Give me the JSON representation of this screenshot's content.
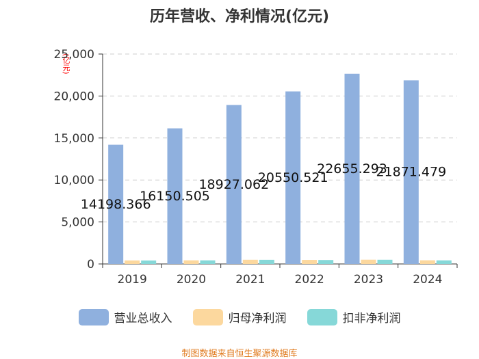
{
  "chart_data": {
    "type": "bar",
    "title": "历年营收、净利情况(亿元)",
    "ylabel": "(亿元)",
    "xlabel": "",
    "categories": [
      "2019",
      "2020",
      "2021",
      "2022",
      "2023",
      "2024"
    ],
    "series": [
      {
        "name": "营业总收入",
        "color": "#8fb0de",
        "values": [
          14198.366,
          16150.505,
          18927.062,
          20550.521,
          22655.293,
          21871.479
        ],
        "labels": [
          "14198.366",
          "16150.505",
          "18927.062",
          "20550.521",
          "22655.293",
          "21871.479"
        ]
      },
      {
        "name": "归母净利润",
        "color": "#fcd89e",
        "values": [
          420,
          432,
          503,
          485,
          510,
          436
        ]
      },
      {
        "name": "扣非净利润",
        "color": "#86d8d8",
        "values": [
          413,
          428,
          497,
          471,
          504,
          427
        ]
      }
    ],
    "ylim": [
      0,
      25000
    ],
    "yticks": [
      "0",
      "5,000",
      "10,000",
      "15,000",
      "20,000",
      "25,000"
    ],
    "grid": true,
    "legend_position": "bottom"
  },
  "source": "制图数据来自恒生聚源数据库"
}
